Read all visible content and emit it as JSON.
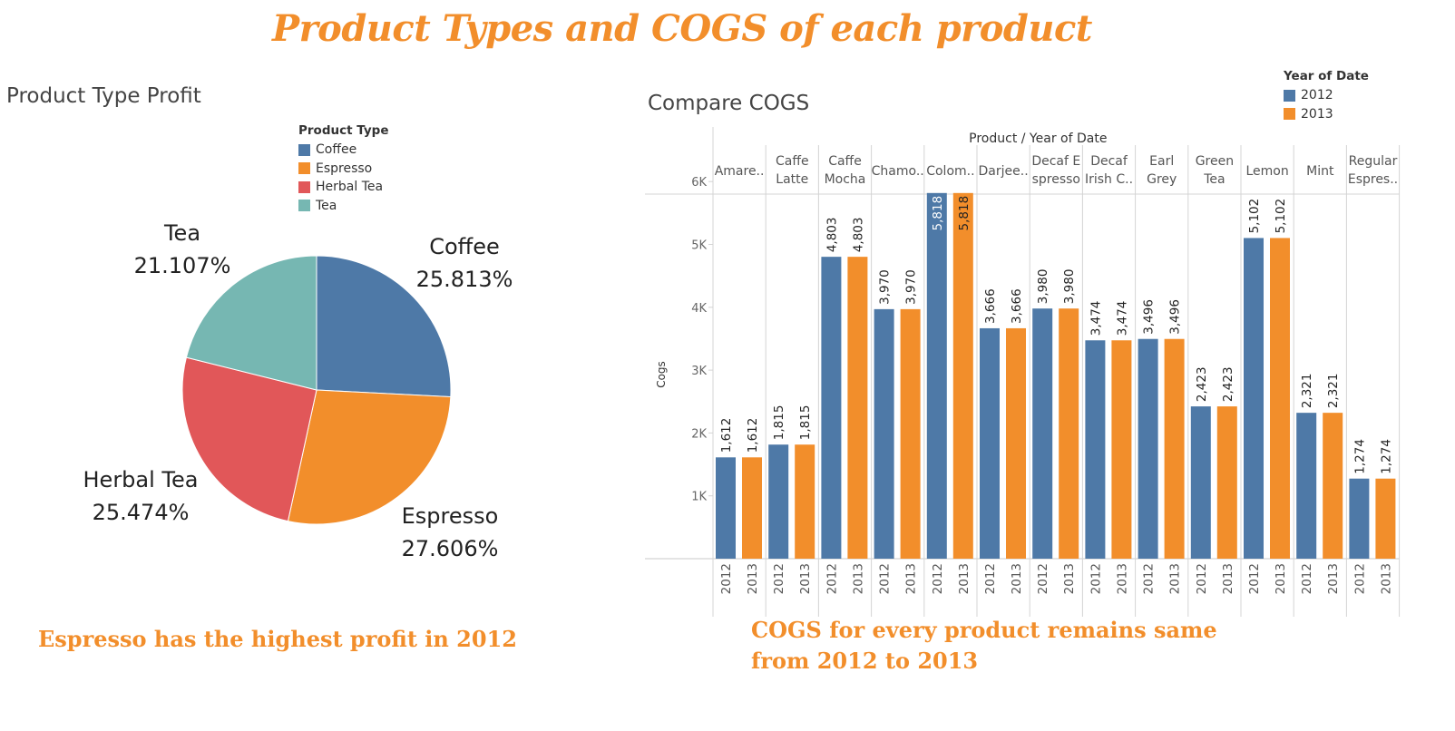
{
  "dashboard_title": "Product Types and COGS of each product",
  "colors": {
    "coffee": "#4e79a7",
    "espresso": "#f28e2b",
    "herbal_tea": "#e15759",
    "tea": "#76b7b2",
    "year_2012": "#4e79a7",
    "year_2013": "#f28e2b",
    "insight_text": "#f28e2b"
  },
  "insights": {
    "left": "Espresso has the highest profit in 2012",
    "right_line1": "COGS for every product remains same",
    "right_line2": "from 2012 to 2013"
  },
  "chart_data": [
    {
      "type": "pie",
      "title": "Product Type Profit",
      "legend_title": "Product Type",
      "legend_position": "top-right",
      "slices": [
        {
          "label": "Coffee",
          "value": 25.813,
          "display": "25.813%",
          "color": "#4e79a7"
        },
        {
          "label": "Espresso",
          "value": 27.606,
          "display": "27.606%",
          "color": "#f28e2b"
        },
        {
          "label": "Herbal Tea",
          "value": 25.474,
          "display": "25.474%",
          "color": "#e15759"
        },
        {
          "label": "Tea",
          "value": 21.107,
          "display": "21.107%",
          "color": "#76b7b2"
        }
      ]
    },
    {
      "type": "bar",
      "title": "Compare COGS",
      "column_header": "Product  /  Year of Date",
      "ylabel": "Cogs",
      "ylim": [
        0,
        6500
      ],
      "yticks": [
        {
          "value": 1000,
          "label": "1K"
        },
        {
          "value": 2000,
          "label": "2K"
        },
        {
          "value": 3000,
          "label": "3K"
        },
        {
          "value": 4000,
          "label": "4K"
        },
        {
          "value": 5000,
          "label": "5K"
        },
        {
          "value": 6000,
          "label": "6K"
        }
      ],
      "grid": false,
      "legend_title": "Year of Date",
      "legend_position": "top-right",
      "series": [
        {
          "name": "2012",
          "color": "#4e79a7"
        },
        {
          "name": "2013",
          "color": "#f28e2b"
        }
      ],
      "categories": [
        {
          "label": [
            "Amare.."
          ],
          "values": [
            1612,
            1612
          ],
          "labels": [
            "1,612",
            "1,612"
          ]
        },
        {
          "label": [
            "Caffe",
            "Latte"
          ],
          "values": [
            1815,
            1815
          ],
          "labels": [
            "1,815",
            "1,815"
          ]
        },
        {
          "label": [
            "Caffe",
            "Mocha"
          ],
          "values": [
            4803,
            4803
          ],
          "labels": [
            "4,803",
            "4,803"
          ]
        },
        {
          "label": [
            "Chamo.."
          ],
          "values": [
            3970,
            3970
          ],
          "labels": [
            "3,970",
            "3,970"
          ]
        },
        {
          "label": [
            "Colom.."
          ],
          "values": [
            5818,
            5818
          ],
          "labels": [
            "5,818",
            "5,818"
          ]
        },
        {
          "label": [
            "Darjee.."
          ],
          "values": [
            3666,
            3666
          ],
          "labels": [
            "3,666",
            "3,666"
          ]
        },
        {
          "label": [
            "Decaf E",
            "spresso"
          ],
          "values": [
            3980,
            3980
          ],
          "labels": [
            "3,980",
            "3,980"
          ]
        },
        {
          "label": [
            "Decaf",
            "Irish C.."
          ],
          "values": [
            3474,
            3474
          ],
          "labels": [
            "3,474",
            "3,474"
          ]
        },
        {
          "label": [
            "Earl",
            "Grey"
          ],
          "values": [
            3496,
            3496
          ],
          "labels": [
            "3,496",
            "3,496"
          ]
        },
        {
          "label": [
            "Green",
            "Tea"
          ],
          "values": [
            2423,
            2423
          ],
          "labels": [
            "2,423",
            "2,423"
          ]
        },
        {
          "label": [
            "Lemon"
          ],
          "values": [
            5102,
            5102
          ],
          "labels": [
            "5,102",
            "5,102"
          ]
        },
        {
          "label": [
            "Mint"
          ],
          "values": [
            2321,
            2321
          ],
          "labels": [
            "2,321",
            "2,321"
          ]
        },
        {
          "label": [
            "Regular",
            "Espres.."
          ],
          "values": [
            1274,
            1274
          ],
          "labels": [
            "1,274",
            "1,274"
          ]
        }
      ]
    }
  ]
}
